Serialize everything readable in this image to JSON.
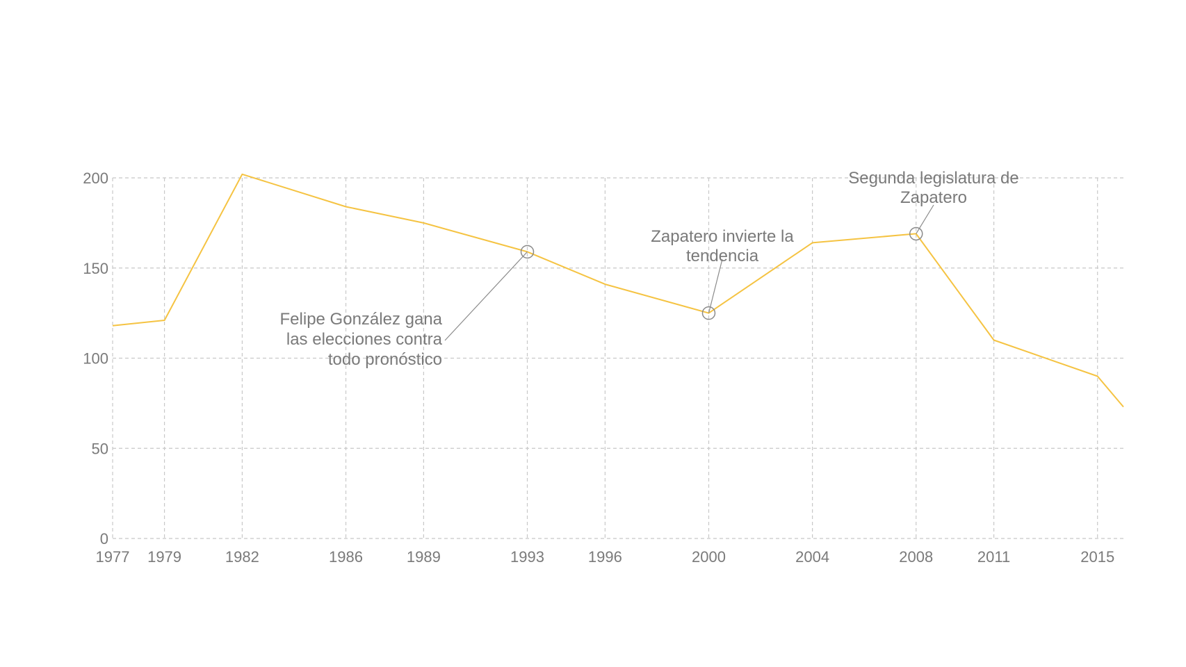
{
  "chart_data": {
    "type": "line",
    "title": "",
    "xlabel": "",
    "ylabel": "",
    "x": [
      1977,
      1979,
      1982,
      1986,
      1989,
      1993,
      1996,
      2000,
      2004,
      2008,
      2011,
      2015,
      2016
    ],
    "x_ticks": [
      "1977",
      "1979",
      "1982",
      "1986",
      "1989",
      "1993",
      "1996",
      "2000",
      "2004",
      "2008",
      "2011",
      "2015"
    ],
    "y_ticks": [
      "0",
      "50",
      "100",
      "150",
      "200"
    ],
    "xlim": [
      1977,
      2016
    ],
    "ylim": [
      0,
      200
    ],
    "grid": true,
    "series": [
      {
        "values": [
          118,
          121,
          202,
          184,
          175,
          159,
          141,
          125,
          164,
          169,
          110,
          90,
          73
        ],
        "color": "#f5c342"
      }
    ],
    "annotations": [
      {
        "x": 1993,
        "y": 159,
        "lines": [
          "Felipe González gana",
          "las elecciones contra",
          "todo pronóstico"
        ]
      },
      {
        "x": 2000,
        "y": 125,
        "lines": [
          "Zapatero invierte la",
          "tendencia"
        ]
      },
      {
        "x": 2008,
        "y": 169,
        "lines": [
          "Segunda legislatura de",
          "Zapatero"
        ]
      }
    ]
  }
}
